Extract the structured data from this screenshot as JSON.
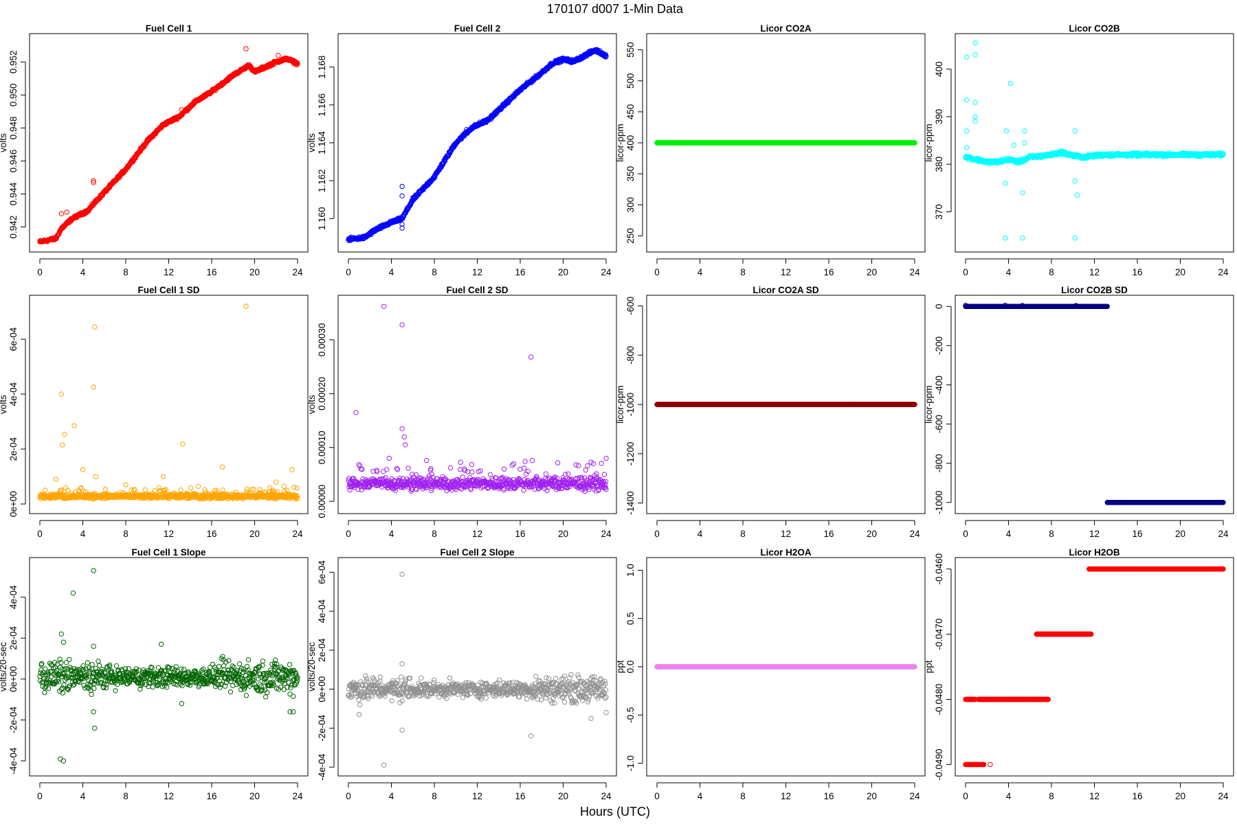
{
  "figure": {
    "title": "170107   d007   1-Min Data",
    "xlabel": "Hours (UTC)"
  },
  "chart_data": [
    {
      "type": "scatter",
      "title": "Fuel Cell 1",
      "ylabel": "volts",
      "xlim": [
        0,
        24
      ],
      "ylim": [
        0.9409,
        0.9533
      ],
      "yticks": [
        0.942,
        0.944,
        0.946,
        0.948,
        0.95,
        0.952
      ],
      "ytick_labels": [
        "0.942",
        "0.944",
        "0.946",
        "0.948",
        "0.950",
        "0.952"
      ],
      "xticks": [
        0,
        4,
        8,
        12,
        16,
        20,
        24
      ],
      "color": "#ff0000",
      "series": [
        {
          "pattern": "trend",
          "points": [
            [
              0,
              0.9411
            ],
            [
              1.5,
              0.9413
            ],
            [
              2,
              0.9419
            ],
            [
              3,
              0.9425
            ],
            [
              4.5,
              0.943
            ],
            [
              5,
              0.9434
            ],
            [
              6,
              0.9441
            ],
            [
              8,
              0.9455
            ],
            [
              10,
              0.9472
            ],
            [
              11.5,
              0.9482
            ],
            [
              13,
              0.9487
            ],
            [
              14.5,
              0.9496
            ],
            [
              16,
              0.9502
            ],
            [
              18,
              0.9512
            ],
            [
              19.5,
              0.9518
            ],
            [
              20,
              0.9514
            ],
            [
              21,
              0.9517
            ],
            [
              22,
              0.952
            ],
            [
              23,
              0.9522
            ],
            [
              24,
              0.9519
            ]
          ],
          "noise": 0.00012,
          "outliers": [
            [
              19.2,
              0.9528
            ],
            [
              2,
              0.9428
            ],
            [
              2.5,
              0.9429
            ],
            [
              5,
              0.9447
            ],
            [
              5,
              0.9448
            ],
            [
              13.2,
              0.9491
            ],
            [
              22.2,
              0.9524
            ]
          ]
        }
      ]
    },
    {
      "type": "scatter",
      "title": "Fuel Cell 2",
      "ylabel": "volts",
      "xlim": [
        0,
        24
      ],
      "ylim": [
        1.1586,
        1.1694
      ],
      "yticks": [
        1.16,
        1.162,
        1.164,
        1.166,
        1.168
      ],
      "ytick_labels": [
        "1.160",
        "1.162",
        "1.164",
        "1.166",
        "1.168"
      ],
      "xticks": [
        0,
        4,
        8,
        12,
        16,
        20,
        24
      ],
      "color": "#0000ff",
      "series": [
        {
          "pattern": "trend",
          "points": [
            [
              0,
              1.1589
            ],
            [
              1.5,
              1.159
            ],
            [
              2.5,
              1.1594
            ],
            [
              4,
              1.1598
            ],
            [
              5,
              1.16
            ],
            [
              6,
              1.161
            ],
            [
              8,
              1.1622
            ],
            [
              10,
              1.164
            ],
            [
              11.5,
              1.1648
            ],
            [
              13,
              1.1652
            ],
            [
              14.5,
              1.166
            ],
            [
              16,
              1.1668
            ],
            [
              18,
              1.1677
            ],
            [
              19,
              1.1682
            ],
            [
              20,
              1.1684
            ],
            [
              21,
              1.1683
            ],
            [
              22,
              1.1686
            ],
            [
              23,
              1.1689
            ],
            [
              24,
              1.1686
            ]
          ],
          "noise": 0.00012,
          "outliers": [
            [
              5,
              1.1617
            ],
            [
              5,
              1.1612
            ],
            [
              5,
              1.1597
            ],
            [
              5,
              1.1595
            ],
            [
              11,
              1.1647
            ]
          ]
        }
      ]
    },
    {
      "type": "scatter",
      "title": "Licor CO2A",
      "ylabel": "licor-ppm",
      "xlim": [
        0,
        24
      ],
      "ylim": [
        235,
        565
      ],
      "yticks": [
        250,
        300,
        350,
        400,
        450,
        500,
        550
      ],
      "ytick_labels": [
        "250",
        "300",
        "350",
        "400",
        "450",
        "500",
        "550"
      ],
      "xticks": [
        0,
        4,
        8,
        12,
        16,
        20,
        24
      ],
      "color": "#00ee00",
      "series": [
        {
          "pattern": "constant",
          "value": 400
        }
      ]
    },
    {
      "type": "scatter",
      "title": "Licor CO2B",
      "ylabel": "licor-ppm",
      "xlim": [
        0,
        24
      ],
      "ylim": [
        363,
        406
      ],
      "yticks": [
        370,
        380,
        390,
        400
      ],
      "ytick_labels": [
        "370",
        "380",
        "390",
        "400"
      ],
      "xticks": [
        0,
        4,
        8,
        12,
        16,
        20,
        24
      ],
      "color": "#00ffff",
      "series": [
        {
          "pattern": "trend",
          "points": [
            [
              0,
              381.5
            ],
            [
              1,
              381.0
            ],
            [
              2,
              380.5
            ],
            [
              3,
              380.5
            ],
            [
              4,
              381.0
            ],
            [
              5,
              380.5
            ],
            [
              6,
              381.5
            ],
            [
              7,
              381.7
            ],
            [
              8,
              382.0
            ],
            [
              9,
              382.5
            ],
            [
              10,
              381.8
            ],
            [
              11,
              381.5
            ],
            [
              12,
              381.8
            ],
            [
              13,
              382.0
            ],
            [
              24,
              382.0
            ]
          ],
          "noise": 0.5,
          "outliers": [
            [
              0.1,
              402.5
            ],
            [
              0.9,
              403
            ],
            [
              0.9,
              405.5
            ],
            [
              0.1,
              393.5
            ],
            [
              0.9,
              393
            ],
            [
              0.9,
              390
            ],
            [
              0.1,
              387
            ],
            [
              0.9,
              389
            ],
            [
              0.1,
              383.5
            ],
            [
              4.2,
              397
            ],
            [
              3.8,
              387
            ],
            [
              3.7,
              376
            ],
            [
              3.7,
              364.5
            ],
            [
              5.5,
              387
            ],
            [
              5.3,
              374
            ],
            [
              5.3,
              364.5
            ],
            [
              10.2,
              387
            ],
            [
              10.4,
              373.5
            ],
            [
              10.2,
              364.5
            ],
            [
              10.2,
              376.5
            ],
            [
              4.5,
              384
            ],
            [
              5.5,
              384.5
            ]
          ]
        }
      ]
    },
    {
      "type": "scatter",
      "title": "Fuel Cell 1 SD",
      "ylabel": "volts",
      "xlim": [
        0,
        24
      ],
      "ylim": [
        -1e-05,
        0.000735
      ],
      "yticks": [
        0,
        0.0002,
        0.0004,
        0.0006
      ],
      "ytick_labels": [
        "0e+00",
        "2e-04",
        "4e-04",
        "6e-04"
      ],
      "xticks": [
        0,
        4,
        8,
        12,
        16,
        20,
        24
      ],
      "color": "#ffa500",
      "series": [
        {
          "pattern": "band",
          "base": 2.8e-05,
          "spread": 2.2e-05,
          "outliers": [
            [
              19.2,
              0.00072
            ],
            [
              5.1,
              0.000645
            ],
            [
              2,
              0.0004
            ],
            [
              5,
              0.000425
            ],
            [
              2.3,
              0.000253
            ],
            [
              3.2,
              0.000285
            ],
            [
              2.1,
              0.000215
            ],
            [
              13.3,
              0.000218
            ],
            [
              17,
              0.000135
            ],
            [
              4,
              0.000125
            ],
            [
              23.5,
              0.000125
            ],
            [
              11.5,
              0.0001
            ],
            [
              5.2,
              0.0001
            ],
            [
              1.5,
              9e-05
            ],
            [
              22,
              8e-05
            ],
            [
              8,
              7e-05
            ]
          ]
        }
      ]
    },
    {
      "type": "scatter",
      "title": "Fuel Cell 2 SD",
      "ylabel": "volts",
      "xlim": [
        0,
        24
      ],
      "ylim": [
        -1e-05,
        0.00037
      ],
      "yticks": [
        0,
        0.0001,
        0.0002,
        0.0003
      ],
      "ytick_labels": [
        "0.00000",
        "0.00010",
        "0.00020",
        "0.00030"
      ],
      "xticks": [
        0,
        4,
        8,
        12,
        16,
        20,
        24
      ],
      "color": "#a020f0",
      "series": [
        {
          "pattern": "band",
          "base": 3.3e-05,
          "spread": 2.8e-05,
          "outliers": [
            [
              3.3,
              0.000362
            ],
            [
              5,
              0.000328
            ],
            [
              17,
              0.000268
            ],
            [
              0.7,
              0.000165
            ],
            [
              5,
              0.000135
            ],
            [
              5.2,
              0.00012
            ],
            [
              5.3,
              0.000105
            ],
            [
              3.8,
              8e-05
            ],
            [
              14.5,
              6e-05
            ],
            [
              22.8,
              7e-05
            ],
            [
              24,
              8e-05
            ]
          ]
        }
      ]
    },
    {
      "type": "scatter",
      "title": "Licor CO2A SD",
      "ylabel": "licor-ppm",
      "xlim": [
        0,
        24
      ],
      "ylim": [
        -1415,
        -585
      ],
      "yticks": [
        -1400,
        -1200,
        -1000,
        -800,
        -600
      ],
      "ytick_labels": [
        "-1400",
        "-1200",
        "-1000",
        "-800",
        "-600"
      ],
      "xticks": [
        0,
        4,
        8,
        12,
        16,
        20,
        24
      ],
      "color": "#8b0000",
      "series": [
        {
          "pattern": "constant",
          "value": -1000
        }
      ]
    },
    {
      "type": "scatter",
      "title": "Licor CO2B SD",
      "ylabel": "licor-ppm",
      "xlim": [
        0,
        24
      ],
      "ylim": [
        -1022,
        22
      ],
      "yticks": [
        -1000,
        -800,
        -600,
        -400,
        -200,
        0
      ],
      "ytick_labels": [
        "-1000",
        "-800",
        "-600",
        "-400",
        "-200",
        "0"
      ],
      "xticks": [
        0,
        4,
        8,
        12,
        16,
        20,
        24
      ],
      "color": "#000080",
      "series": [
        {
          "pattern": "steps",
          "segments": [
            {
              "x0": 0,
              "x1": 13.2,
              "value": 0
            },
            {
              "x0": 13.2,
              "x1": 24,
              "value": -1000
            }
          ],
          "outliers": [
            [
              0,
              6
            ],
            [
              3.7,
              6
            ],
            [
              5.3,
              5
            ],
            [
              10.3,
              5
            ]
          ]
        }
      ]
    },
    {
      "type": "scatter",
      "title": "Fuel Cell 1 Slope",
      "ylabel": "volts/20-sec",
      "xlim": [
        0,
        24
      ],
      "ylim": [
        -0.00044,
        0.00056
      ],
      "yticks": [
        -0.0004,
        -0.0002,
        0,
        0.0002,
        0.0004
      ],
      "ytick_labels": [
        "-4e-04",
        "-2e-04",
        "0e+00",
        "2e-04",
        "4e-04"
      ],
      "xticks": [
        0,
        4,
        8,
        12,
        16,
        20,
        24
      ],
      "color": "#006400",
      "series": [
        {
          "pattern": "band_centered",
          "base": 1e-05,
          "spread": 8.5e-05,
          "outliers": [
            [
              5,
              0.00053
            ],
            [
              3.1,
              0.00042
            ],
            [
              2,
              0.00022
            ],
            [
              2.2,
              0.00018
            ],
            [
              11.3,
              0.00017
            ],
            [
              5,
              0.00016
            ],
            [
              16.9,
              0.0001
            ],
            [
              1.9,
              -0.00039
            ],
            [
              2.2,
              -0.0004
            ],
            [
              5.1,
              -0.00024
            ],
            [
              5,
              -0.00016
            ],
            [
              23.3,
              -0.00016
            ],
            [
              23.6,
              -0.00016
            ],
            [
              13.2,
              -0.00012
            ]
          ]
        }
      ]
    },
    {
      "type": "scatter",
      "title": "Fuel Cell 2 Slope",
      "ylabel": "volts/20-sec",
      "xlim": [
        0,
        24
      ],
      "ylim": [
        -0.00041,
        0.00064
      ],
      "yticks": [
        -0.0004,
        -0.0002,
        0,
        0.0002,
        0.0004,
        0.0006
      ],
      "ytick_labels": [
        "-4e-04",
        "-2e-04",
        "0e+00",
        "2e-04",
        "4e-04",
        "6e-04"
      ],
      "xticks": [
        0,
        4,
        8,
        12,
        16,
        20,
        24
      ],
      "color": "#909090",
      "series": [
        {
          "pattern": "band_centered",
          "base": 0.0,
          "spread": 7e-05,
          "outliers": [
            [
              5,
              0.00059
            ],
            [
              3.3,
              -0.00039
            ],
            [
              17,
              -0.00024
            ],
            [
              5,
              -0.00021
            ],
            [
              5,
              0.00013
            ],
            [
              1,
              -0.00013
            ],
            [
              22.6,
              -0.00015
            ],
            [
              24,
              -0.00012
            ]
          ]
        }
      ]
    },
    {
      "type": "scatter",
      "title": "Licor H2OA",
      "ylabel": "ppt",
      "xlim": [
        0,
        24
      ],
      "ylim": [
        -1.06,
        1.06
      ],
      "yticks": [
        -1.0,
        -0.5,
        0.0,
        0.5,
        1.0
      ],
      "ytick_labels": [
        "-1.0",
        "-0.5",
        "0.0",
        "0.5",
        "1.0"
      ],
      "xticks": [
        0,
        4,
        8,
        12,
        16,
        20,
        24
      ],
      "color": "#ee82ee",
      "series": [
        {
          "pattern": "constant",
          "value": 0
        }
      ]
    },
    {
      "type": "scatter",
      "title": "Licor H2OB",
      "ylabel": "ppt",
      "xlim": [
        0,
        24
      ],
      "ylim": [
        -0.04907,
        -0.04593
      ],
      "yticks": [
        -0.049,
        -0.048,
        -0.047,
        -0.046
      ],
      "ytick_labels": [
        "-0.0490",
        "-0.0480",
        "-0.0470",
        "-0.0460"
      ],
      "xticks": [
        0,
        4,
        8,
        12,
        16,
        20,
        24
      ],
      "color": "#ff0000",
      "series": [
        {
          "pattern": "steps",
          "segments": [
            {
              "x0": 0,
              "x1": 1.7,
              "value": -0.049
            },
            {
              "x0": 0,
              "x1": 0.9,
              "value": -0.048
            },
            {
              "x0": 1.2,
              "x1": 7.7,
              "value": -0.048
            },
            {
              "x0": 6.6,
              "x1": 11.7,
              "value": -0.047
            },
            {
              "x0": 11.5,
              "x1": 24,
              "value": -0.046
            }
          ],
          "outliers": [
            [
              2.3,
              -0.049
            ]
          ]
        }
      ]
    }
  ]
}
